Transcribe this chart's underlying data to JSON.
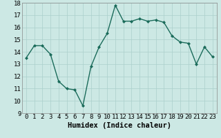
{
  "x": [
    0,
    1,
    2,
    3,
    4,
    5,
    6,
    7,
    8,
    9,
    10,
    11,
    12,
    13,
    14,
    15,
    16,
    17,
    18,
    19,
    20,
    21,
    22,
    23
  ],
  "y": [
    13.5,
    14.5,
    14.5,
    13.8,
    11.6,
    11.0,
    10.9,
    9.6,
    12.8,
    14.4,
    15.5,
    17.8,
    16.5,
    16.5,
    16.7,
    16.5,
    16.6,
    16.4,
    15.3,
    14.8,
    14.7,
    13.0,
    14.4,
    13.6
  ],
  "xlabel": "Humidex (Indice chaleur)",
  "ylim": [
    9,
    18
  ],
  "xlim": [
    -0.5,
    23.5
  ],
  "yticks": [
    9,
    10,
    11,
    12,
    13,
    14,
    15,
    16,
    17,
    18
  ],
  "xticks": [
    0,
    1,
    2,
    3,
    4,
    5,
    6,
    7,
    8,
    9,
    10,
    11,
    12,
    13,
    14,
    15,
    16,
    17,
    18,
    19,
    20,
    21,
    22,
    23
  ],
  "line_color": "#1a6b5a",
  "marker_color": "#1a6b5a",
  "bg_color": "#cce8e4",
  "grid_color": "#aacfcb",
  "label_fontsize": 7.5,
  "tick_fontsize": 6.5
}
